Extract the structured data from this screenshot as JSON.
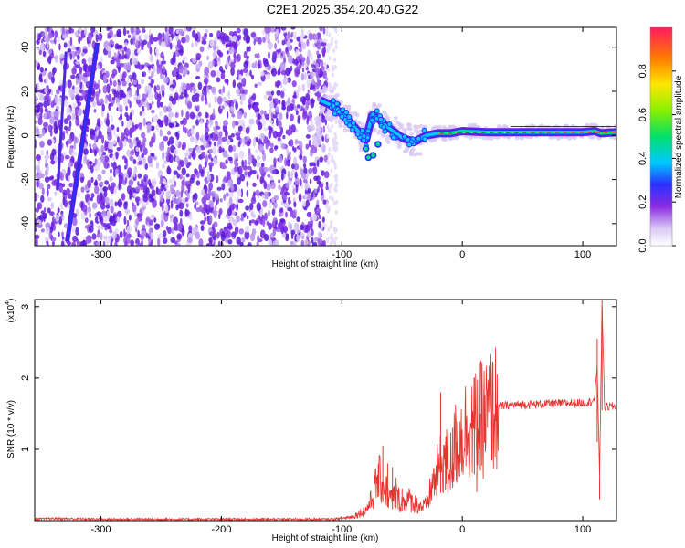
{
  "title": "C2E1.2025.354.20.40.G22",
  "chart_data": [
    {
      "type": "heatmap",
      "xlabel": "Height of straight line (km)",
      "ylabel": "Frequency (Hz)",
      "xlim": [
        -355,
        128
      ],
      "ylim": [
        -50,
        49
      ],
      "xticks": [
        -300,
        -200,
        -100,
        0,
        100
      ],
      "yticks": [
        -40,
        -20,
        0,
        20,
        40
      ],
      "colorbar": {
        "label": "Normalized spectral amplitude",
        "range": [
          0,
          1
        ],
        "ticks": [
          "0.0",
          "0.2",
          "0.4",
          "0.6",
          "0.8"
        ]
      },
      "ridge": {
        "x": [
          -118,
          -110,
          -100,
          -90,
          -80,
          -75,
          -70,
          -65,
          -60,
          -50,
          -40,
          -30,
          -20,
          -10,
          0,
          20,
          40,
          60,
          80,
          100,
          110,
          115,
          128
        ],
        "y": [
          16,
          14,
          10,
          4,
          -2,
          9,
          8,
          5,
          3,
          -1,
          -3,
          0,
          1,
          1,
          2,
          1.5,
          1.5,
          1.5,
          1.5,
          1.5,
          2,
          1,
          1.5
        ]
      },
      "streak": {
        "x": [
          -328,
          -303
        ],
        "y": [
          -48,
          42
        ]
      }
    },
    {
      "type": "line",
      "xlabel": "Height of straight line (km)",
      "ylabel": "SNR (10 * v/v)",
      "scale_label": "(x10",
      "scale_exp": "4",
      "scale_close": ")",
      "xlim": [
        -355,
        128
      ],
      "ylim": [
        0,
        3.1
      ],
      "xticks": [
        -300,
        -200,
        -100,
        0,
        100
      ],
      "yticks": [
        1,
        2,
        3
      ],
      "series": [
        {
          "color": "#e8322e",
          "x": [
            -355,
            -340,
            -300,
            -250,
            -200,
            -150,
            -110,
            -100,
            -90,
            -80,
            -75,
            -70,
            -65,
            -60,
            -55,
            -50,
            -45,
            -40,
            -35,
            -30,
            -25,
            -20,
            -15,
            -12,
            -10,
            -5,
            0,
            5,
            10,
            15,
            20,
            25,
            30,
            40,
            50,
            60,
            70,
            80,
            90,
            100,
            105,
            110,
            112,
            114,
            116,
            118,
            120,
            128
          ],
          "y": [
            0.02,
            0.03,
            0.02,
            0.02,
            0.02,
            0.02,
            0.02,
            0.03,
            0.06,
            0.15,
            0.3,
            0.6,
            0.5,
            0.3,
            0.35,
            0.25,
            0.3,
            0.25,
            0.2,
            0.2,
            0.5,
            0.7,
            0.9,
            0.8,
            0.8,
            1.1,
            1.2,
            1.35,
            1.3,
            1.4,
            1.45,
            1.55,
            1.6,
            1.62,
            1.63,
            1.63,
            1.64,
            1.64,
            1.65,
            1.65,
            1.66,
            1.7,
            2.2,
            0.6,
            3.1,
            1.6,
            1.6,
            1.6
          ]
        }
      ],
      "spikes": {
        "x": [
          -66,
          -62,
          -58,
          -55,
          -50,
          -18,
          -14,
          -12,
          -8,
          -5,
          10,
          12,
          15,
          112,
          114,
          116
        ],
        "y": [
          1.05,
          0.8,
          0.75,
          0.6,
          0.45,
          1.8,
          0.9,
          1.05,
          1.3,
          1.1,
          2.0,
          0.4,
          1.5,
          2.55,
          0.6,
          3.1
        ]
      }
    }
  ]
}
